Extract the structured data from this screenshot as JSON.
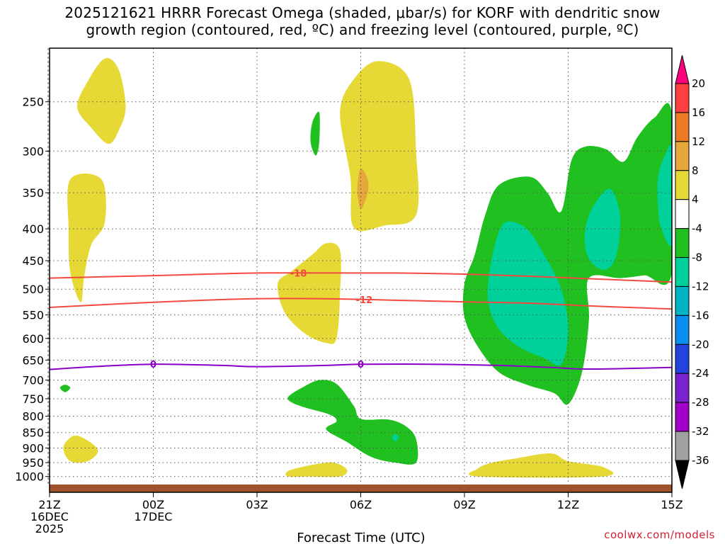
{
  "title": {
    "line1": "2025121621 HRRR Forecast Omega (shaded, μbar/s) for KORF with dendritic snow",
    "line2": "growth region (contoured, red, ºC) and freezing level (contoured, purple, ºC)"
  },
  "credit": "coolwx.com/models",
  "chart_data": {
    "type": "area",
    "title": "2025121621 HRRR Forecast Omega (shaded, μbar/s) for KORF with dendritic snow growth region (contoured, red, ºC) and freezing level (contoured, purple, ºC)",
    "xlabel": "Forecast Time (UTC)",
    "ylabel": "",
    "x_ticks": [
      {
        "hour": 0,
        "label": [
          "21Z",
          "16DEC",
          "2025"
        ]
      },
      {
        "hour": 3,
        "label": [
          "00Z",
          "17DEC"
        ]
      },
      {
        "hour": 6,
        "label": [
          "03Z"
        ]
      },
      {
        "hour": 9,
        "label": [
          "06Z"
        ]
      },
      {
        "hour": 12,
        "label": [
          "09Z"
        ]
      },
      {
        "hour": 15,
        "label": [
          "12Z"
        ]
      },
      {
        "hour": 18,
        "label": [
          "15Z"
        ]
      }
    ],
    "xlim": [
      0,
      18
    ],
    "y_scale": "log-pressure",
    "y_ticks": [
      250,
      300,
      350,
      400,
      450,
      500,
      550,
      600,
      650,
      700,
      750,
      800,
      850,
      900,
      950,
      1000
    ],
    "ylim": [
      1030,
      205
    ],
    "grid": true,
    "colorbar": {
      "labels": [
        20,
        16,
        12,
        8,
        4,
        -4,
        -8,
        -12,
        -16,
        -20,
        -24,
        -28,
        -32,
        -36
      ],
      "colors": [
        "#ff007f",
        "#ff4040",
        "#ee7a25",
        "#e6a83a",
        "#e6d936",
        "#ffffff",
        "#20c020",
        "#00d09a",
        "#00b4c4",
        "#0a8ff0",
        "#2244dd",
        "#7a22cc",
        "#a000c8",
        "#a0a0a0",
        "#000000"
      ]
    },
    "shaded_regions": [
      {
        "color": "#e6d936",
        "points": [
          [
            0.8,
            255
          ],
          [
            1.1,
            232
          ],
          [
            1.6,
            213
          ],
          [
            2.0,
            222
          ],
          [
            2.2,
            255
          ],
          [
            2.0,
            278
          ],
          [
            1.7,
            292
          ],
          [
            1.2,
            275
          ]
        ]
      },
      {
        "color": "#e6d936",
        "points": [
          [
            0.6,
            333
          ],
          [
            1.5,
            333
          ],
          [
            1.6,
            390
          ],
          [
            1.2,
            425
          ],
          [
            1.0,
            478
          ],
          [
            0.9,
            525
          ],
          [
            0.6,
            470
          ],
          [
            0.55,
            400
          ]
        ]
      },
      {
        "color": "#e6d936",
        "points": [
          [
            0.4,
            897
          ],
          [
            0.7,
            860
          ],
          [
            1.1,
            875
          ],
          [
            1.4,
            910
          ],
          [
            1.1,
            945
          ],
          [
            0.6,
            945
          ]
        ]
      },
      {
        "color": "#e6d936",
        "points": [
          [
            8.4,
            260
          ],
          [
            8.8,
            230
          ],
          [
            9.5,
            215
          ],
          [
            10.4,
            230
          ],
          [
            10.6,
            300
          ],
          [
            10.6,
            380
          ],
          [
            9.7,
            395
          ],
          [
            8.8,
            398
          ],
          [
            8.7,
            330
          ]
        ]
      },
      {
        "color": "#e6a83a",
        "points": [
          [
            9.0,
            320
          ],
          [
            9.2,
            333
          ],
          [
            9.2,
            350
          ],
          [
            9.0,
            372
          ],
          [
            8.9,
            345
          ]
        ]
      },
      {
        "color": "#e6d936",
        "points": [
          [
            6.6,
            490
          ],
          [
            7.0,
            468
          ],
          [
            7.6,
            440
          ],
          [
            8.0,
            422
          ],
          [
            8.4,
            433
          ],
          [
            8.4,
            510
          ],
          [
            8.3,
            600
          ],
          [
            8.0,
            610
          ],
          [
            7.4,
            590
          ],
          [
            6.8,
            545
          ]
        ]
      },
      {
        "color": "#e6d936",
        "points": [
          [
            6.9,
            980
          ],
          [
            7.5,
            960
          ],
          [
            8.2,
            950
          ],
          [
            8.6,
            975
          ],
          [
            8.4,
            1000
          ],
          [
            7.5,
            1000
          ],
          [
            6.9,
            1000
          ]
        ]
      },
      {
        "color": "#e6d936",
        "points": [
          [
            12.4,
            970
          ],
          [
            12.8,
            950
          ],
          [
            13.5,
            935
          ],
          [
            14.5,
            918
          ],
          [
            15.0,
            945
          ],
          [
            16.0,
            965
          ],
          [
            16.0,
            1000
          ],
          [
            12.4,
            1000
          ]
        ]
      },
      {
        "color": "#20c020",
        "points": [
          [
            7.6,
            270
          ],
          [
            7.8,
            260
          ],
          [
            7.8,
            290
          ],
          [
            7.7,
            305
          ],
          [
            7.55,
            290
          ]
        ]
      },
      {
        "color": "#20c020",
        "points": [
          [
            0.3,
            720
          ],
          [
            0.45,
            712
          ],
          [
            0.6,
            720
          ],
          [
            0.45,
            732
          ]
        ]
      },
      {
        "color": "#20c020",
        "points": [
          [
            6.9,
            745
          ],
          [
            7.3,
            720
          ],
          [
            7.8,
            700
          ],
          [
            8.3,
            710
          ],
          [
            8.8,
            770
          ],
          [
            9.0,
            808
          ],
          [
            9.8,
            810
          ],
          [
            10.3,
            830
          ],
          [
            10.6,
            870
          ],
          [
            10.6,
            950
          ],
          [
            10.0,
            950
          ],
          [
            9.3,
            930
          ],
          [
            8.6,
            880
          ],
          [
            8.0,
            840
          ],
          [
            8.3,
            815
          ],
          [
            8.1,
            795
          ],
          [
            7.4,
            775
          ],
          [
            7.0,
            760
          ]
        ]
      },
      {
        "color": "#00d09a",
        "points": [
          [
            9.9,
            865
          ],
          [
            10.0,
            855
          ],
          [
            10.1,
            865
          ],
          [
            10.0,
            878
          ]
        ]
      },
      {
        "color": "#20c020",
        "points": [
          [
            12.0,
            490
          ],
          [
            12.3,
            440
          ],
          [
            12.6,
            380
          ],
          [
            13.0,
            340
          ],
          [
            13.9,
            330
          ],
          [
            14.4,
            350
          ],
          [
            14.8,
            375
          ],
          [
            15.1,
            310
          ],
          [
            15.5,
            295
          ],
          [
            16.1,
            298
          ],
          [
            16.6,
            312
          ],
          [
            17.0,
            285
          ],
          [
            17.5,
            265
          ],
          [
            18.0,
            262
          ],
          [
            18.0,
            470
          ],
          [
            17.2,
            475
          ],
          [
            16.5,
            480
          ],
          [
            15.6,
            480
          ],
          [
            15.6,
            560
          ],
          [
            15.4,
            680
          ],
          [
            15.0,
            765
          ],
          [
            14.6,
            735
          ],
          [
            13.8,
            712
          ],
          [
            13.0,
            680
          ],
          [
            12.4,
            620
          ],
          [
            12.0,
            555
          ]
        ]
      },
      {
        "color": "#00d09a",
        "points": [
          [
            12.7,
            480
          ],
          [
            12.9,
            420
          ],
          [
            13.2,
            390
          ],
          [
            13.8,
            400
          ],
          [
            14.3,
            440
          ],
          [
            14.8,
            500
          ],
          [
            15.0,
            580
          ],
          [
            14.8,
            660
          ],
          [
            14.3,
            645
          ],
          [
            13.6,
            620
          ],
          [
            13.0,
            580
          ],
          [
            12.7,
            530
          ]
        ]
      },
      {
        "color": "#00d09a",
        "points": [
          [
            15.5,
            400
          ],
          [
            15.7,
            370
          ],
          [
            16.2,
            345
          ],
          [
            16.5,
            380
          ],
          [
            16.4,
            440
          ],
          [
            16.1,
            465
          ],
          [
            15.7,
            455
          ],
          [
            15.5,
            430
          ]
        ]
      },
      {
        "color": "#00d09a",
        "points": [
          [
            17.6,
            330
          ],
          [
            17.8,
            305
          ],
          [
            18.0,
            300
          ],
          [
            18.0,
            420
          ],
          [
            17.7,
            400
          ],
          [
            17.6,
            370
          ]
        ]
      }
    ],
    "contours": [
      {
        "value": -18,
        "color": "#f24a3f",
        "label": "-18",
        "label_hour": 7.2,
        "points": [
          [
            0,
            480
          ],
          [
            2,
            477
          ],
          [
            4,
            474
          ],
          [
            6,
            471
          ],
          [
            8,
            471
          ],
          [
            10,
            471
          ],
          [
            12,
            473
          ],
          [
            14,
            477
          ],
          [
            16,
            482
          ],
          [
            18,
            487
          ]
        ]
      },
      {
        "value": -12,
        "color": "#f24a3f",
        "label": "-12",
        "label_hour": 9.1,
        "points": [
          [
            0,
            535
          ],
          [
            2,
            528
          ],
          [
            4,
            522
          ],
          [
            6,
            518
          ],
          [
            8,
            518
          ],
          [
            10,
            521
          ],
          [
            12,
            524
          ],
          [
            14,
            527
          ],
          [
            16,
            533
          ],
          [
            18,
            538
          ]
        ]
      },
      {
        "value": 0,
        "color": "#8a00c8",
        "label": "0",
        "label_hour": 3.0,
        "points": [
          [
            0,
            673
          ],
          [
            1.5,
            665
          ],
          [
            3,
            660
          ],
          [
            5,
            663
          ],
          [
            6,
            666
          ],
          [
            8,
            663
          ],
          [
            9,
            660
          ],
          [
            11,
            660
          ],
          [
            13,
            663
          ],
          [
            14.5,
            668
          ],
          [
            15.5,
            672
          ],
          [
            17,
            670
          ],
          [
            18,
            668
          ]
        ]
      },
      {
        "value": 0,
        "color": "#8a00c8",
        "label": "0",
        "label_hour": 9.0,
        "points": []
      }
    ]
  }
}
